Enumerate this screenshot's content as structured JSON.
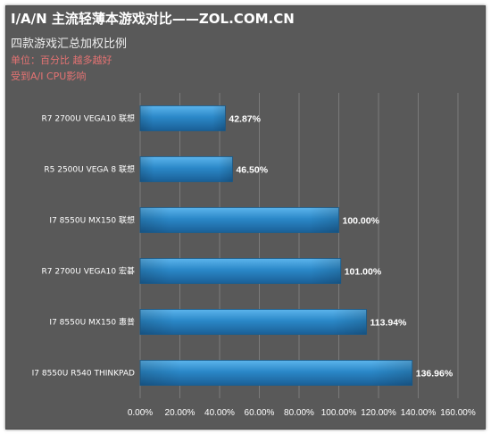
{
  "header": {
    "title": "I/A/N 主流轻薄本游戏对比——ZOL.COM.CN",
    "subtitle": "四款游戏汇总加权比例",
    "note_unit": "单位：百分比  越多越好",
    "note_cpu": "受到A/I CPU影响"
  },
  "colors": {
    "background": "#595959",
    "bar": "#2b88c8",
    "note": "#e57373"
  },
  "chart_data": {
    "type": "bar",
    "orientation": "horizontal",
    "title": "I/A/N 主流轻薄本游戏对比——ZOL.COM.CN",
    "subtitle": "四款游戏汇总加权比例",
    "categories": [
      "R7 2700U VEGA10 联想",
      "R5 2500U VEGA 8  联想",
      "I7 8550U MX150 联想",
      "R7 2700U VEGA10 宏碁",
      "I7 8550U MX150 惠普",
      "I7 8550U R540 THINKPAD"
    ],
    "values": [
      42.87,
      46.5,
      100.0,
      101.0,
      113.94,
      136.96
    ],
    "value_labels": [
      "42.87%",
      "46.50%",
      "100.00%",
      "101.00%",
      "113.94%",
      "136.96%"
    ],
    "xlim": [
      0,
      160
    ],
    "xticks": [
      0,
      20,
      40,
      60,
      80,
      100,
      120,
      140,
      160
    ],
    "xtick_labels": [
      "0.00%",
      "20.00%",
      "40.00%",
      "60.00%",
      "80.00%",
      "100.00%",
      "120.00%",
      "140.00%",
      "160.00%"
    ],
    "grid": true,
    "legend": "none"
  }
}
